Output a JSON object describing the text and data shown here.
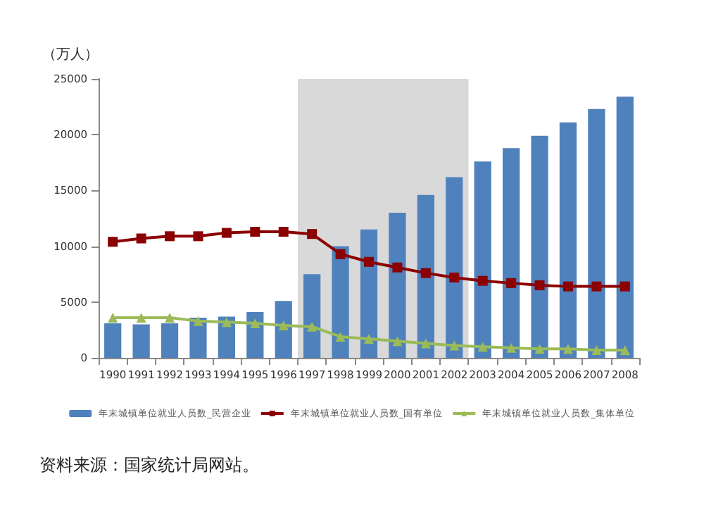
{
  "chart_data": {
    "type": "bar",
    "ylabel": "（万人）",
    "categories": [
      "1990",
      "1991",
      "1992",
      "1993",
      "1994",
      "1995",
      "1996",
      "1997",
      "1998",
      "1999",
      "2000",
      "2001",
      "2002",
      "2003",
      "2004",
      "2005",
      "2006",
      "2007",
      "2008"
    ],
    "series": [
      {
        "name": "年末城镇单位就业人员数_民营企业",
        "color": "#4f81bd",
        "values": [
          3100,
          3000,
          3100,
          3600,
          3700,
          4100,
          5100,
          7500,
          10000,
          11500,
          13000,
          14600,
          16200,
          17600,
          18800,
          19900,
          21100,
          22300,
          23400
        ]
      },
      {
        "name": "年末城镇单位就业人员数_国有单位",
        "type": "line",
        "color": "#8b0000",
        "marker": "square",
        "values": [
          10400,
          10700,
          10900,
          10900,
          11200,
          11300,
          11300,
          11100,
          9300,
          8600,
          8100,
          7600,
          7200,
          6900,
          6700,
          6500,
          6400,
          6400,
          6400
        ]
      },
      {
        "name": "年末城镇单位就业人员数_集体单位",
        "type": "line",
        "color": "#9bbb59",
        "marker": "triangle",
        "values": [
          3600,
          3600,
          3600,
          3300,
          3200,
          3100,
          2900,
          2800,
          1900,
          1700,
          1500,
          1300,
          1100,
          1000,
          900,
          800,
          800,
          700,
          700
        ]
      }
    ],
    "ylim": [
      0,
      25000
    ],
    "yticks": [
      0,
      5000,
      10000,
      15000,
      20000,
      25000
    ],
    "bands": [
      {
        "axis": "x",
        "from": "1997",
        "to": "2002",
        "color": "#d9d9d9"
      }
    ],
    "legend": "bottom",
    "grid": false,
    "annotations": [
      "资料来源：国家统计局网站。"
    ]
  }
}
